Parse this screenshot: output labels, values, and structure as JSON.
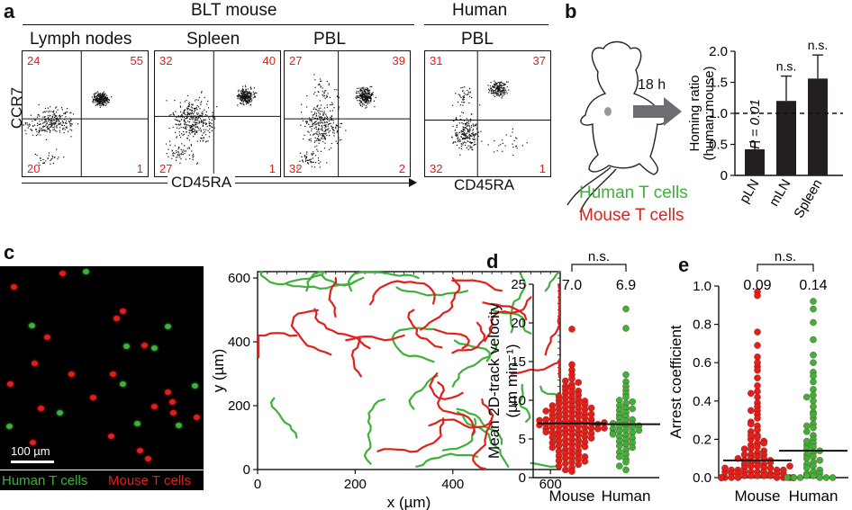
{
  "panels": {
    "a": "a",
    "b": "b",
    "c": "c",
    "d": "d",
    "e": "e"
  },
  "a": {
    "group_mouse": "BLT mouse",
    "group_human": "Human",
    "ylabel": "CCR7",
    "xlabel": "CD45RA",
    "xlabel_human": "CD45RA",
    "plots": [
      {
        "title": "Lymph nodes",
        "q": [
          "24",
          "55",
          "20",
          "1"
        ]
      },
      {
        "title": "Spleen",
        "q": [
          "32",
          "40",
          "27",
          "1"
        ]
      },
      {
        "title": "PBL",
        "q": [
          "27",
          "39",
          "32",
          "2"
        ]
      },
      {
        "title": "PBL",
        "q": [
          "31",
          "37",
          "32",
          "1"
        ]
      }
    ]
  },
  "b": {
    "time": "18 h",
    "legend_human": "Human T cells",
    "legend_mouse": "Mouse T cells",
    "colors": {
      "human": "#3fb03b",
      "mouse": "#e0201b"
    }
  },
  "c": {
    "scalebar": "100 µm",
    "legend_human": "Human T cells",
    "legend_mouse": "Mouse T cells",
    "xlabel": "x (µm)",
    "ylabel": "y (µm)"
  },
  "chart_data": [
    {
      "panel": "b",
      "type": "bar",
      "categories": [
        "pLN",
        "mLN",
        "Spleen"
      ],
      "values": [
        0.42,
        1.2,
        1.56
      ],
      "errors": [
        0.12,
        0.4,
        0.38
      ],
      "annotations": [
        "P = 0.01",
        "n.s.",
        "n.s."
      ],
      "ylabel": "Homing ratio (human:mouse)",
      "ylim": [
        0,
        2
      ],
      "yticks": [
        "0",
        "0.5",
        "1.0",
        "1.5",
        "2.0"
      ],
      "reference_line": 1.0
    },
    {
      "panel": "d",
      "type": "scatter",
      "categories": [
        "Mouse",
        "Human"
      ],
      "means": [
        "7.0",
        "6.9"
      ],
      "mean_values": [
        7.0,
        6.9
      ],
      "significance": "n.s.",
      "ylabel": "Mean 2D-track velocity (µm min⁻¹)",
      "ylim": [
        0,
        25
      ],
      "yticks": [
        "0",
        "5",
        "10",
        "15",
        "20",
        "25"
      ],
      "series": [
        {
          "name": "Mouse",
          "color": "#e0201b",
          "values": [
            19.2,
            14.6,
            13.9,
            13.3,
            12.8,
            12.5,
            12.3,
            12.0,
            11.8,
            11.6,
            11.4,
            11.2,
            11.0,
            10.9,
            10.7,
            10.5,
            10.4,
            10.3,
            10.1,
            10.0,
            9.9,
            9.8,
            9.7,
            9.6,
            9.5,
            9.4,
            9.3,
            9.2,
            9.1,
            9.0,
            8.9,
            8.8,
            8.7,
            8.6,
            8.5,
            8.4,
            8.3,
            8.2,
            8.1,
            8.0,
            7.9,
            7.9,
            7.8,
            7.7,
            7.6,
            7.5,
            7.5,
            7.4,
            7.3,
            7.2,
            7.2,
            7.1,
            7.0,
            7.0,
            6.9,
            6.9,
            6.8,
            6.7,
            6.7,
            6.6,
            6.5,
            6.5,
            6.4,
            6.3,
            6.3,
            6.2,
            6.1,
            6.0,
            6.0,
            5.9,
            5.8,
            5.7,
            5.6,
            5.6,
            5.5,
            5.4,
            5.3,
            5.2,
            5.1,
            5.0,
            4.9,
            4.8,
            4.7,
            4.6,
            4.5,
            4.4,
            4.3,
            4.2,
            4.1,
            4.0,
            3.9,
            3.8,
            3.6,
            3.5,
            3.4,
            3.2,
            3.1,
            3.0,
            2.8,
            2.7,
            2.6,
            2.5,
            2.4,
            2.2,
            2.1,
            2.0,
            1.8,
            1.7,
            1.5,
            1.3,
            1.0,
            0.8,
            7.4,
            7.1,
            6.8,
            6.4,
            5.9,
            8.2,
            8.6,
            9.0
          ]
        },
        {
          "name": "Human",
          "color": "#3fb03b",
          "values": [
            21.8,
            19.3,
            13.3,
            12.4,
            11.8,
            11.3,
            10.8,
            10.4,
            10.0,
            9.6,
            9.3,
            9.0,
            8.7,
            8.4,
            8.1,
            7.9,
            7.7,
            7.5,
            7.3,
            7.1,
            6.9,
            6.8,
            6.6,
            6.5,
            6.3,
            6.2,
            6.0,
            5.8,
            5.7,
            5.5,
            5.3,
            5.1,
            4.9,
            4.7,
            4.5,
            4.3,
            4.1,
            3.9,
            3.6,
            3.3,
            3.0,
            2.7,
            2.4,
            2.0,
            1.5,
            1.0,
            7.0,
            6.7,
            6.1,
            5.6,
            8.9,
            9.8
          ]
        }
      ]
    },
    {
      "panel": "e",
      "type": "scatter",
      "categories": [
        "Mouse",
        "Human"
      ],
      "means": [
        "0.09",
        "0.14"
      ],
      "mean_values": [
        0.09,
        0.14
      ],
      "significance": "n.s.",
      "ylabel": "Arrest coefficient",
      "ylim": [
        0,
        1
      ],
      "yticks": [
        "0.0",
        "0.2",
        "0.4",
        "0.6",
        "0.8",
        "1.0"
      ],
      "series": [
        {
          "name": "Mouse",
          "color": "#e0201b",
          "values": [
            0.97,
            0.95,
            0.76,
            0.69,
            0.63,
            0.58,
            0.56,
            0.52,
            0.48,
            0.45,
            0.42,
            0.39,
            0.37,
            0.35,
            0.33,
            0.31,
            0.29,
            0.27,
            0.25,
            0.24,
            0.22,
            0.21,
            0.2,
            0.19,
            0.18,
            0.17,
            0.16,
            0.15,
            0.14,
            0.13,
            0.12,
            0.12,
            0.11,
            0.1,
            0.1,
            0.09,
            0.09,
            0.08,
            0.08,
            0.07,
            0.07,
            0.06,
            0.06,
            0.05,
            0.05,
            0.05,
            0.04,
            0.04,
            0.04,
            0.03,
            0.03,
            0.03,
            0.03,
            0.02,
            0.02,
            0.02,
            0.02,
            0.01,
            0.01,
            0.01,
            0.01,
            0.01,
            0.0,
            0.0,
            0.0,
            0.0,
            0.0,
            0.0,
            0.0,
            0.0,
            0.0,
            0.0,
            0.0,
            0.0,
            0.0,
            0.02,
            0.03,
            0.04,
            0.05,
            0.06,
            0.08,
            0.1,
            0.12,
            0.15,
            0.18,
            0.22,
            0.28,
            0.35,
            0.44,
            0.6
          ]
        },
        {
          "name": "Human",
          "color": "#3fb03b",
          "values": [
            0.92,
            0.88,
            0.81,
            0.72,
            0.64,
            0.6,
            0.55,
            0.5,
            0.46,
            0.43,
            0.4,
            0.37,
            0.34,
            0.31,
            0.28,
            0.26,
            0.24,
            0.22,
            0.2,
            0.18,
            0.17,
            0.16,
            0.15,
            0.14,
            0.13,
            0.12,
            0.11,
            0.1,
            0.09,
            0.08,
            0.07,
            0.06,
            0.05,
            0.04,
            0.03,
            0.02,
            0.02,
            0.01,
            0.01,
            0.0,
            0.0,
            0.0,
            0.0,
            0.0,
            0.0,
            0.19,
            0.27,
            0.33,
            0.42,
            0.53
          ]
        }
      ]
    }
  ]
}
